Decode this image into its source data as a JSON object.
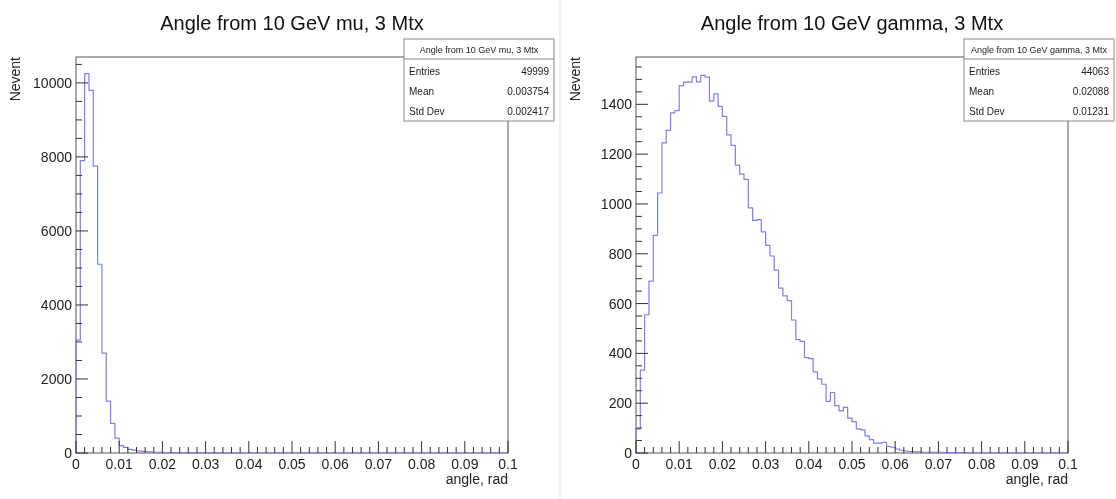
{
  "chart_data": [
    {
      "type": "histogram",
      "title": "Angle from 10 GeV mu, 3 Mtx",
      "xlabel": "angle, rad",
      "ylabel": "Nevent",
      "color": "#8080e0",
      "bins": [
        0,
        0.001,
        0.002,
        0.003,
        0.004,
        0.005,
        0.006,
        0.007,
        0.008,
        0.009,
        0.01,
        0.011,
        0.012,
        0.013,
        0.014,
        0.015,
        0.016,
        0.017,
        0.018,
        0.019,
        0.02,
        0.021,
        0.022,
        0.023,
        0.024,
        0.025,
        0.026,
        0.027,
        0.028,
        0.029,
        0.03,
        0.031,
        0.032,
        0.033,
        0.034,
        0.035,
        0.036,
        0.037,
        0.038,
        0.039,
        0.04,
        0.041,
        0.042,
        0.043,
        0.044,
        0.045,
        0.046,
        0.047,
        0.048,
        0.049,
        0.05,
        0.051,
        0.052,
        0.053,
        0.054,
        0.055,
        0.056,
        0.057,
        0.058,
        0.059,
        0.06,
        0.061,
        0.062,
        0.063,
        0.064,
        0.065,
        0.066,
        0.067,
        0.068,
        0.069,
        0.07,
        0.071,
        0.072,
        0.073,
        0.074,
        0.075,
        0.076,
        0.077,
        0.078,
        0.079,
        0.08,
        0.081,
        0.082,
        0.083,
        0.084,
        0.085,
        0.086,
        0.087,
        0.088,
        0.089,
        0.09,
        0.091,
        0.092,
        0.093,
        0.094,
        0.095,
        0.096,
        0.097,
        0.098,
        0.099,
        0.1
      ],
      "values": [
        3050,
        7900,
        10250,
        9800,
        7750,
        5100,
        2700,
        1400,
        800,
        400,
        200,
        150,
        100,
        80,
        60,
        45,
        35,
        25,
        20,
        15,
        12,
        10,
        8,
        6,
        5,
        4,
        3,
        3,
        2,
        2,
        2,
        1,
        1,
        1,
        1,
        1,
        1,
        0,
        0,
        0,
        0,
        0,
        0,
        0,
        0,
        0,
        0,
        0,
        0,
        0,
        0,
        0,
        0,
        0,
        0,
        0,
        0,
        0,
        0,
        0,
        0,
        0,
        0,
        0,
        0,
        0,
        0,
        0,
        0,
        0,
        0,
        0,
        0,
        0,
        0,
        0,
        0,
        0,
        0,
        0,
        0,
        0,
        0,
        0,
        0,
        0,
        0,
        0,
        0,
        0,
        0,
        0,
        0,
        0,
        0,
        0,
        0,
        0,
        0,
        0
      ],
      "xlim": [
        0,
        0.1
      ],
      "ylim": [
        0,
        10700
      ],
      "xticks": [
        0,
        {
          "value": 0.002,
          "label": null
        },
        {
          "value": 0.004,
          "label": null
        },
        {
          "value": 0.006,
          "label": null
        },
        {
          "value": 0.008,
          "label": null
        },
        0.01,
        {
          "value": 0.012,
          "label": null
        },
        {
          "value": 0.014,
          "label": null
        },
        {
          "value": 0.016,
          "label": null
        },
        {
          "value": 0.018,
          "label": null
        },
        0.02,
        {
          "value": 0.022,
          "label": null
        },
        {
          "value": 0.024,
          "label": null
        },
        {
          "value": 0.026,
          "label": null
        },
        {
          "value": 0.028,
          "label": null
        },
        0.03,
        {
          "value": 0.032,
          "label": null
        },
        {
          "value": 0.034,
          "label": null
        },
        {
          "value": 0.036,
          "label": null
        },
        {
          "value": 0.038,
          "label": null
        },
        0.04,
        {
          "value": 0.042,
          "label": null
        },
        {
          "value": 0.044,
          "label": null
        },
        {
          "value": 0.046,
          "label": null
        },
        {
          "value": 0.048,
          "label": null
        },
        0.05,
        {
          "value": 0.052,
          "label": null
        },
        {
          "value": 0.054,
          "label": null
        },
        {
          "value": 0.056,
          "label": null
        },
        {
          "value": 0.058,
          "label": null
        },
        0.06,
        {
          "value": 0.062,
          "label": null
        },
        {
          "value": 0.064,
          "label": null
        },
        {
          "value": 0.066,
          "label": null
        },
        {
          "value": 0.068,
          "label": null
        },
        0.07,
        {
          "value": 0.072,
          "label": null
        },
        {
          "value": 0.074,
          "label": null
        },
        {
          "value": 0.076,
          "label": null
        },
        {
          "value": 0.078,
          "label": null
        },
        0.08,
        {
          "value": 0.082,
          "label": null
        },
        {
          "value": 0.084,
          "label": null
        },
        {
          "value": 0.086,
          "label": null
        },
        {
          "value": 0.088,
          "label": null
        },
        0.09,
        {
          "value": 0.092,
          "label": null
        },
        {
          "value": 0.094,
          "label": null
        },
        {
          "value": 0.096,
          "label": null
        },
        {
          "value": 0.098,
          "label": null
        },
        0.1
      ],
      "yticks": [
        0,
        {
          "value": 500,
          "label": null
        },
        {
          "value": 1000,
          "label": null
        },
        {
          "value": 1500,
          "label": null
        },
        2000,
        {
          "value": 2500,
          "label": null
        },
        {
          "value": 3000,
          "label": null
        },
        {
          "value": 3500,
          "label": null
        },
        4000,
        {
          "value": 4500,
          "label": null
        },
        {
          "value": 5000,
          "label": null
        },
        {
          "value": 5500,
          "label": null
        },
        6000,
        {
          "value": 6500,
          "label": null
        },
        {
          "value": 7000,
          "label": null
        },
        {
          "value": 7500,
          "label": null
        },
        8000,
        {
          "value": 8500,
          "label": null
        },
        {
          "value": 9000,
          "label": null
        },
        {
          "value": 9500,
          "label": null
        },
        10000,
        {
          "value": 10500,
          "label": null
        }
      ],
      "annotations": [
        "Angle from 10 GeV mu, 3 Mtx",
        "Entries",
        "49999",
        "Mean",
        "0.003754",
        "Std Dev",
        "0.002417"
      ]
    },
    {
      "type": "histogram",
      "title": "Angle from 10 GeV gamma, 3 Mtx",
      "xlabel": "angle, rad",
      "ylabel": "Nevent",
      "color": "#8080e0",
      "bins": [
        0,
        0.001,
        0.002,
        0.003,
        0.004,
        0.005,
        0.006,
        0.007,
        0.008,
        0.009,
        0.01,
        0.011,
        0.012,
        0.013,
        0.014,
        0.015,
        0.016,
        0.017,
        0.018,
        0.019,
        0.02,
        0.021,
        0.022,
        0.023,
        0.024,
        0.025,
        0.026,
        0.027,
        0.028,
        0.029,
        0.03,
        0.031,
        0.032,
        0.033,
        0.034,
        0.035,
        0.036,
        0.037,
        0.038,
        0.039,
        0.04,
        0.041,
        0.042,
        0.043,
        0.044,
        0.045,
        0.046,
        0.047,
        0.048,
        0.049,
        0.05,
        0.051,
        0.052,
        0.053,
        0.054,
        0.055,
        0.056,
        0.057,
        0.058,
        0.059,
        0.06,
        0.061,
        0.062,
        0.063,
        0.064,
        0.065,
        0.066,
        0.067,
        0.068,
        0.069,
        0.07,
        0.071,
        0.072,
        0.073,
        0.074,
        0.075,
        0.076,
        0.077,
        0.078,
        0.079,
        0.08,
        0.081,
        0.082,
        0.083,
        0.084,
        0.085,
        0.086,
        0.087,
        0.088,
        0.089,
        0.09,
        0.091,
        0.092,
        0.093,
        0.094,
        0.095,
        0.096,
        0.097,
        0.098,
        0.099,
        0.1
      ],
      "values": [
        97,
        333,
        555,
        690,
        874,
        1044,
        1245,
        1295,
        1366,
        1375,
        1475,
        1489,
        1489,
        1510,
        1490,
        1516,
        1509,
        1413,
        1442,
        1392,
        1352,
        1277,
        1235,
        1156,
        1120,
        1099,
        984,
        934,
        937,
        888,
        834,
        791,
        734,
        662,
        631,
        612,
        534,
        455,
        448,
        383,
        379,
        326,
        298,
        276,
        207,
        243,
        190,
        169,
        183,
        140,
        126,
        97,
        93,
        69,
        54,
        40,
        40,
        43,
        26,
        23,
        16,
        11,
        8,
        6,
        5,
        5,
        3,
        3,
        3,
        3,
        3,
        2,
        2,
        2,
        2,
        2,
        1,
        1,
        1,
        1,
        1,
        1,
        1,
        1,
        0,
        0,
        0,
        0,
        0,
        0,
        0,
        0,
        0,
        0,
        0,
        0,
        0,
        0,
        0,
        0
      ],
      "xlim": [
        0,
        0.1
      ],
      "ylim": [
        0,
        1590
      ],
      "xticks": [
        0,
        {
          "value": 0.002,
          "label": null
        },
        {
          "value": 0.004,
          "label": null
        },
        {
          "value": 0.006,
          "label": null
        },
        {
          "value": 0.008,
          "label": null
        },
        0.01,
        {
          "value": 0.012,
          "label": null
        },
        {
          "value": 0.014,
          "label": null
        },
        {
          "value": 0.016,
          "label": null
        },
        {
          "value": 0.018,
          "label": null
        },
        0.02,
        {
          "value": 0.022,
          "label": null
        },
        {
          "value": 0.024,
          "label": null
        },
        {
          "value": 0.026,
          "label": null
        },
        {
          "value": 0.028,
          "label": null
        },
        0.03,
        {
          "value": 0.032,
          "label": null
        },
        {
          "value": 0.034,
          "label": null
        },
        {
          "value": 0.036,
          "label": null
        },
        {
          "value": 0.038,
          "label": null
        },
        0.04,
        {
          "value": 0.042,
          "label": null
        },
        {
          "value": 0.044,
          "label": null
        },
        {
          "value": 0.046,
          "label": null
        },
        {
          "value": 0.048,
          "label": null
        },
        0.05,
        {
          "value": 0.052,
          "label": null
        },
        {
          "value": 0.054,
          "label": null
        },
        {
          "value": 0.056,
          "label": null
        },
        {
          "value": 0.058,
          "label": null
        },
        0.06,
        {
          "value": 0.062,
          "label": null
        },
        {
          "value": 0.064,
          "label": null
        },
        {
          "value": 0.066,
          "label": null
        },
        {
          "value": 0.068,
          "label": null
        },
        0.07,
        {
          "value": 0.072,
          "label": null
        },
        {
          "value": 0.074,
          "label": null
        },
        {
          "value": 0.076,
          "label": null
        },
        {
          "value": 0.078,
          "label": null
        },
        0.08,
        {
          "value": 0.082,
          "label": null
        },
        {
          "value": 0.084,
          "label": null
        },
        {
          "value": 0.086,
          "label": null
        },
        {
          "value": 0.088,
          "label": null
        },
        0.09,
        {
          "value": 0.092,
          "label": null
        },
        {
          "value": 0.094,
          "label": null
        },
        {
          "value": 0.096,
          "label": null
        },
        {
          "value": 0.098,
          "label": null
        },
        0.1
      ],
      "yticks": [
        0,
        {
          "value": 50,
          "label": null
        },
        {
          "value": 100,
          "label": null
        },
        {
          "value": 150,
          "label": null
        },
        200,
        {
          "value": 250,
          "label": null
        },
        {
          "value": 300,
          "label": null
        },
        {
          "value": 350,
          "label": null
        },
        400,
        {
          "value": 450,
          "label": null
        },
        {
          "value": 500,
          "label": null
        },
        {
          "value": 550,
          "label": null
        },
        600,
        {
          "value": 650,
          "label": null
        },
        {
          "value": 700,
          "label": null
        },
        {
          "value": 750,
          "label": null
        },
        800,
        {
          "value": 850,
          "label": null
        },
        {
          "value": 900,
          "label": null
        },
        {
          "value": 950,
          "label": null
        },
        1000,
        {
          "value": 1050,
          "label": null
        },
        {
          "value": 1100,
          "label": null
        },
        {
          "value": 1150,
          "label": null
        },
        1200,
        {
          "value": 1250,
          "label": null
        },
        {
          "value": 1300,
          "label": null
        },
        {
          "value": 1350,
          "label": null
        },
        1400,
        {
          "value": 1450,
          "label": null
        },
        {
          "value": 1500,
          "label": null
        },
        {
          "value": 1550,
          "label": null
        }
      ],
      "annotations": [
        "Angle from 10 GeV gamma, 3 Mtx",
        "Entries",
        "44063",
        "Mean",
        "0.02088",
        "Std Dev",
        "0.01231"
      ]
    }
  ]
}
